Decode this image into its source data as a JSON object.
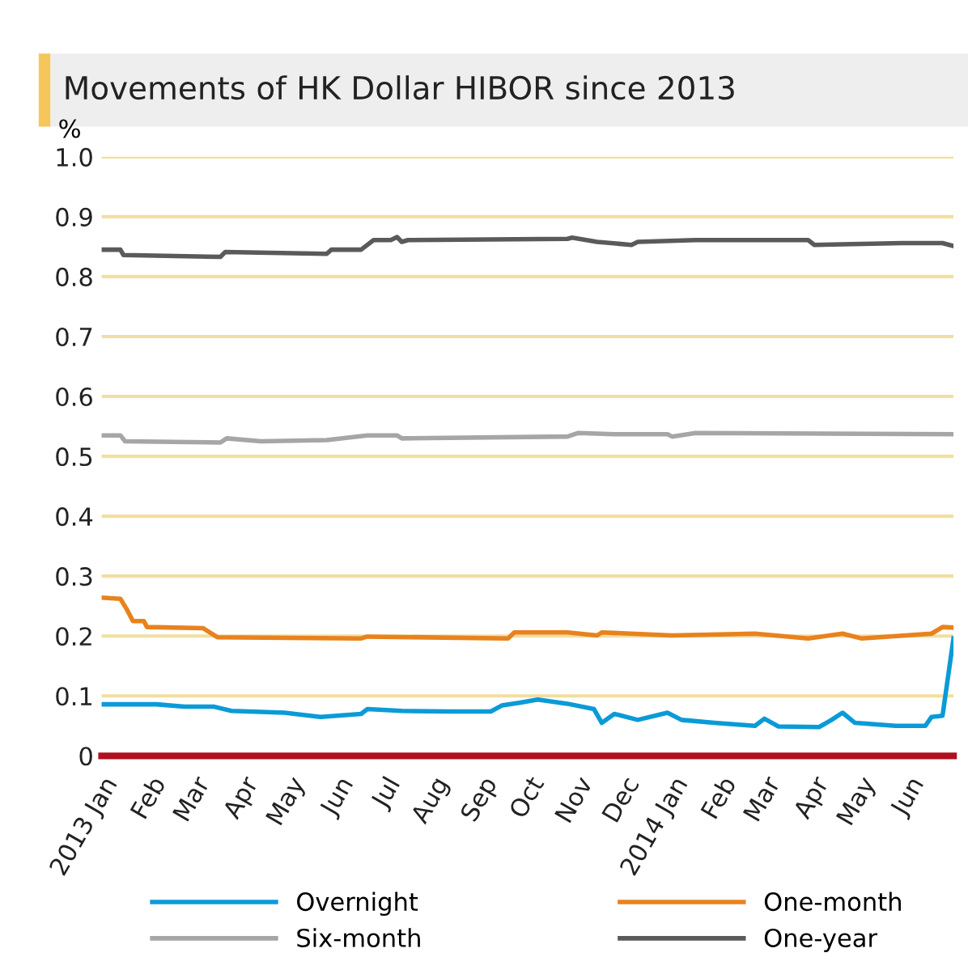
{
  "chart_data": {
    "type": "line",
    "title": "Movements of HK Dollar HIBOR since 2013",
    "ylabel": "%",
    "ylim": [
      0,
      1.0
    ],
    "yticks": [
      0,
      0.1,
      0.2,
      0.3,
      0.4,
      0.5,
      0.6,
      0.7,
      0.8,
      0.9,
      {
        "value": 1.0,
        "label": "1.0"
      }
    ],
    "xlim": [
      "2013-01-01",
      "2014-06-30"
    ],
    "xticks": [
      {
        "value": "2013-01-01",
        "label": "2013 Jan"
      },
      {
        "value": "2013-02-01",
        "label": "Feb"
      },
      {
        "value": "2013-03-01",
        "label": "Mar"
      },
      {
        "value": "2013-04-01",
        "label": "Apr"
      },
      {
        "value": "2013-05-01",
        "label": "May"
      },
      {
        "value": "2013-06-01",
        "label": "Jun"
      },
      {
        "value": "2013-07-01",
        "label": "Jul"
      },
      {
        "value": "2013-08-01",
        "label": "Aug"
      },
      {
        "value": "2013-09-01",
        "label": "Sep"
      },
      {
        "value": "2013-10-01",
        "label": "Oct"
      },
      {
        "value": "2013-11-01",
        "label": "Nov"
      },
      {
        "value": "2013-12-01",
        "label": "Dec"
      },
      {
        "value": "2014-01-01",
        "label": "2014 Jan"
      },
      {
        "value": "2014-02-01",
        "label": "Feb"
      },
      {
        "value": "2014-03-01",
        "label": "Mar"
      },
      {
        "value": "2014-04-01",
        "label": "Apr"
      },
      {
        "value": "2014-05-01",
        "label": "May"
      },
      {
        "value": "2014-06-01",
        "label": "Jun"
      }
    ],
    "grid": "y",
    "legend": "bottom",
    "marker": "none",
    "line_style": "solid",
    "series": [
      {
        "name": "Overnight",
        "color": "#0a9bd7",
        "x": [
          "2013-01-01",
          "2013-02-05",
          "2013-02-23",
          "2013-03-14",
          "2013-03-25",
          "2013-04-28",
          "2013-05-21",
          "2013-06-16",
          "2013-06-20",
          "2013-07-12",
          "2013-08-12",
          "2013-09-07",
          "2013-09-14",
          "2013-09-26",
          "2013-10-07",
          "2013-10-26",
          "2013-11-12",
          "2013-11-17",
          "2013-11-25",
          "2013-12-10",
          "2013-12-29",
          "2014-01-07",
          "2014-01-28",
          "2014-02-23",
          "2014-03-01",
          "2014-03-10",
          "2014-04-05",
          "2014-04-13",
          "2014-04-20",
          "2014-04-28",
          "2014-05-24",
          "2014-06-12",
          "2014-06-16",
          "2014-06-23",
          "2014-06-30"
        ],
        "values": [
          0.086,
          0.086,
          0.082,
          0.082,
          0.075,
          0.072,
          0.065,
          0.07,
          0.078,
          0.075,
          0.074,
          0.074,
          0.084,
          0.089,
          0.094,
          0.087,
          0.078,
          0.055,
          0.07,
          0.06,
          0.072,
          0.06,
          0.055,
          0.05,
          0.062,
          0.049,
          0.048,
          0.06,
          0.072,
          0.055,
          0.05,
          0.05,
          0.065,
          0.067,
          0.196
        ]
      },
      {
        "name": "One-month",
        "color": "#e8821e",
        "x": [
          "2013-01-01",
          "2013-01-13",
          "2013-01-17",
          "2013-01-21",
          "2013-01-28",
          "2013-01-30",
          "2013-03-07",
          "2013-03-16",
          "2013-06-16",
          "2013-06-20",
          "2013-09-18",
          "2013-09-22",
          "2013-10-26",
          "2013-11-14",
          "2013-11-17",
          "2014-01-01",
          "2014-02-23",
          "2014-03-29",
          "2014-04-20",
          "2014-05-02",
          "2014-06-16",
          "2014-06-23",
          "2014-06-30"
        ],
        "values": [
          0.264,
          0.262,
          0.245,
          0.225,
          0.225,
          0.215,
          0.213,
          0.198,
          0.196,
          0.199,
          0.196,
          0.206,
          0.206,
          0.201,
          0.206,
          0.201,
          0.204,
          0.196,
          0.204,
          0.196,
          0.204,
          0.215,
          0.214
        ]
      },
      {
        "name": "Six-month",
        "color": "#a6a6a6",
        "x": [
          "2013-01-01",
          "2013-01-13",
          "2013-01-16",
          "2013-03-18",
          "2013-03-22",
          "2013-04-13",
          "2013-05-25",
          "2013-06-20",
          "2013-07-09",
          "2013-07-12",
          "2013-10-26",
          "2013-11-02",
          "2013-11-25",
          "2013-12-29",
          "2014-01-01",
          "2014-01-16",
          "2014-06-30"
        ],
        "values": [
          0.535,
          0.535,
          0.525,
          0.523,
          0.53,
          0.525,
          0.527,
          0.535,
          0.535,
          0.53,
          0.533,
          0.539,
          0.537,
          0.537,
          0.533,
          0.539,
          0.537
        ]
      },
      {
        "name": "One-year",
        "color": "#5a5a5a",
        "x": [
          "2013-01-01",
          "2013-01-13",
          "2013-01-15",
          "2013-03-18",
          "2013-03-21",
          "2013-05-25",
          "2013-05-28",
          "2013-06-16",
          "2013-06-24",
          "2013-07-05",
          "2013-07-09",
          "2013-07-12",
          "2013-07-16",
          "2013-10-26",
          "2013-10-29",
          "2013-11-14",
          "2013-12-06",
          "2013-12-10",
          "2014-01-16",
          "2014-03-29",
          "2014-04-02",
          "2014-05-28",
          "2014-06-23",
          "2014-06-30"
        ],
        "values": [
          0.845,
          0.845,
          0.836,
          0.833,
          0.841,
          0.838,
          0.845,
          0.845,
          0.861,
          0.861,
          0.866,
          0.858,
          0.861,
          0.863,
          0.865,
          0.858,
          0.853,
          0.858,
          0.861,
          0.861,
          0.853,
          0.856,
          0.856,
          0.851
        ]
      }
    ]
  }
}
